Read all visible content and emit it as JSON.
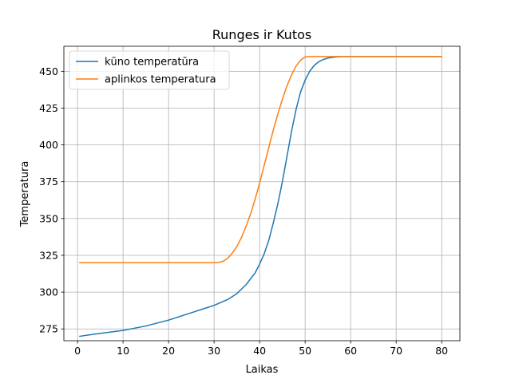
{
  "chart_data": {
    "type": "line",
    "title": "Runges ir Kutos",
    "xlabel": "Laikas",
    "ylabel": "Temperatura",
    "xlim": [
      -3,
      84
    ],
    "ylim": [
      267,
      467
    ],
    "xticks": [
      0,
      10,
      20,
      30,
      40,
      50,
      60,
      70,
      80
    ],
    "yticks": [
      275,
      300,
      325,
      350,
      375,
      400,
      425,
      450
    ],
    "grid": true,
    "legend_position": "top-left",
    "series": [
      {
        "name": "kūno temperatūra",
        "color": "#1f77b4",
        "x": [
          0.5,
          5,
          10,
          15,
          20,
          25,
          30,
          33,
          35,
          37,
          39,
          40,
          41,
          42,
          43,
          44,
          45,
          46,
          47,
          48,
          49,
          50,
          51,
          52,
          53,
          54,
          55,
          56,
          57,
          58,
          60,
          65,
          70,
          80
        ],
        "y": [
          270,
          272,
          274,
          277,
          281,
          286,
          291,
          295,
          299,
          305,
          313,
          319,
          326,
          335,
          347,
          360,
          375,
          392,
          409,
          424,
          436,
          444,
          450,
          454,
          456.5,
          458,
          459,
          459.5,
          459.8,
          460,
          460,
          460,
          460,
          460
        ]
      },
      {
        "name": "aplinkos temperatura",
        "color": "#ff7f0e",
        "x": [
          0.5,
          5,
          10,
          15,
          20,
          25,
          30,
          31,
          32,
          33,
          34,
          35,
          36,
          37,
          38,
          39,
          40,
          41,
          42,
          43,
          44,
          45,
          46,
          47,
          48,
          49,
          50,
          51,
          52,
          55,
          60,
          65,
          70,
          80
        ],
        "y": [
          320,
          320,
          320,
          320,
          320,
          320,
          320,
          320.2,
          321,
          323,
          326.5,
          331,
          337,
          344.5,
          353,
          363,
          374,
          386,
          398,
          410,
          421,
          431,
          440,
          447.5,
          453.5,
          457.5,
          459.8,
          460,
          460,
          460,
          460,
          460,
          460,
          460
        ]
      }
    ]
  }
}
